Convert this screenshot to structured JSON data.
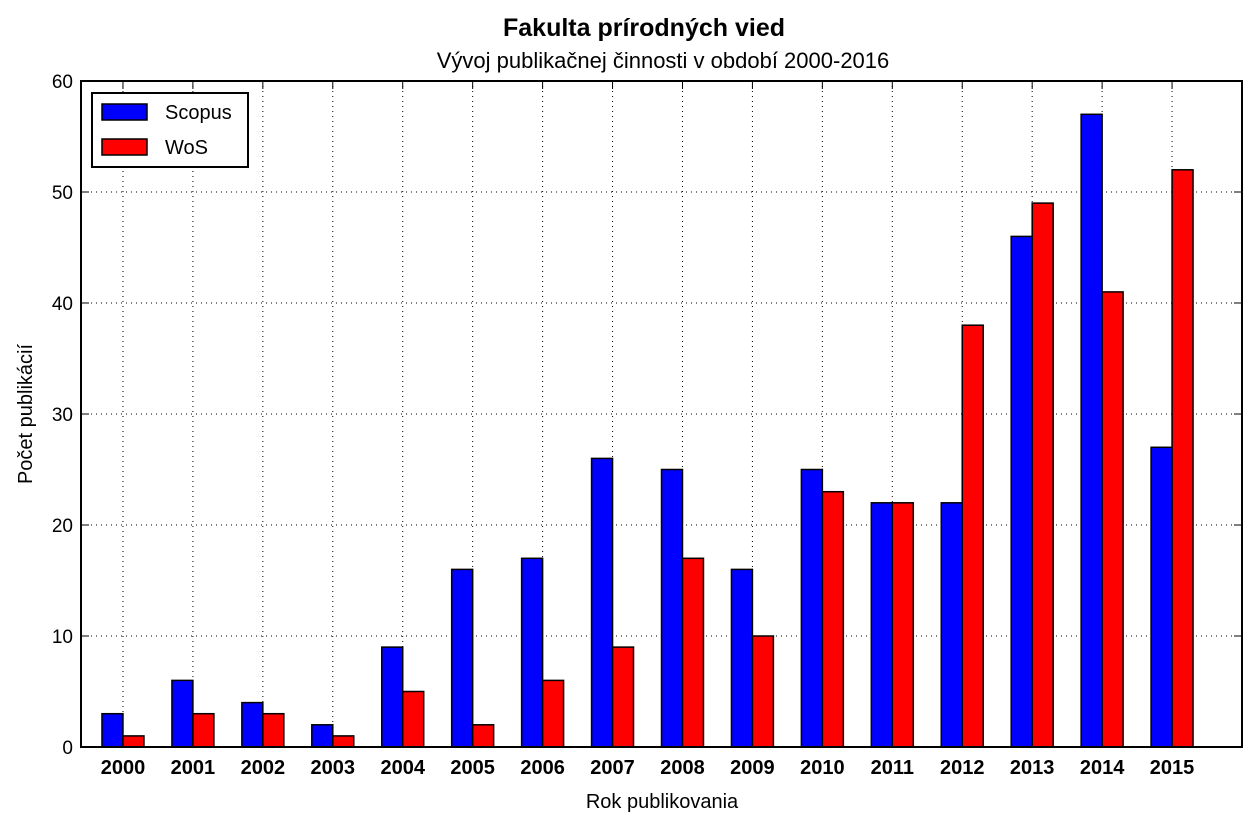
{
  "chart_data": {
    "type": "bar",
    "title": "Fakulta prírodných vied",
    "subtitle": "Vývoj publikačnej činnosti v období 2000-2016",
    "xlabel": "Rok publikovania",
    "ylabel": "Počet publikácií",
    "ylim": [
      0,
      60
    ],
    "yticks": [
      "0",
      "10",
      "20",
      "30",
      "40",
      "50",
      "60"
    ],
    "grid": true,
    "legend_position": "top-left",
    "categories": [
      "2000",
      "2001",
      "2002",
      "2003",
      "2004",
      "2005",
      "2006",
      "2007",
      "2008",
      "2009",
      "2010",
      "2011",
      "2012",
      "2013",
      "2014",
      "2015"
    ],
    "series": [
      {
        "name": "Scopus",
        "color": "#0000ff",
        "values": [
          3,
          6,
          4,
          2,
          9,
          16,
          17,
          26,
          25,
          16,
          25,
          22,
          22,
          46,
          57,
          27
        ]
      },
      {
        "name": "WoS",
        "color": "#ff0000",
        "values": [
          1,
          3,
          3,
          1,
          5,
          2,
          6,
          9,
          17,
          10,
          23,
          22,
          38,
          49,
          41,
          52
        ]
      }
    ]
  }
}
